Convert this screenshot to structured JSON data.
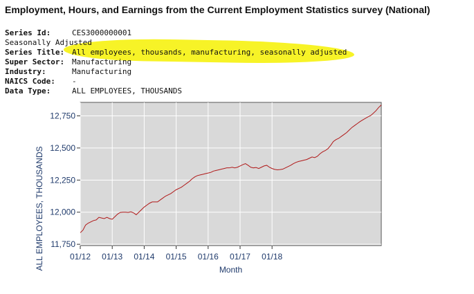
{
  "title": "Employment, Hours, and Earnings from the Current Employment Statistics survey (National)",
  "meta": [
    {
      "label": "Series Id:",
      "value": "CES3000000001"
    },
    {
      "label": "",
      "value": "Seasonally Adjusted"
    },
    {
      "label": "Series Title:",
      "value": "All employees, thousands, manufacturing, seasonally adjusted"
    },
    {
      "label": "Super Sector:",
      "value": "Manufacturing"
    },
    {
      "label": "Industry:",
      "value": "Manufacturing"
    },
    {
      "label": "NAICS Code:",
      "value": "-"
    },
    {
      "label": "Data Type:",
      "value": "ALL EMPLOYEES, THOUSANDS"
    }
  ],
  "colors": {
    "line": "#b01818",
    "plot_bg": "#d9d9d9",
    "axis_text": "#1f3a6b",
    "highlight": "#f7f21b"
  },
  "chart_data": {
    "type": "line",
    "title": "",
    "xlabel": "Month",
    "ylabel": "ALL EMPLOYEES, THOUSANDS",
    "grid": true,
    "xticks": [
      "01/12",
      "01/13",
      "01/14",
      "01/15",
      "01/16",
      "01/17",
      "01/18"
    ],
    "yticks": [
      11750,
      12000,
      12250,
      12500,
      12750
    ],
    "ytick_labels": [
      "11,750",
      "12,000",
      "12,250",
      "12,500",
      "12,750"
    ],
    "ylim": [
      11740,
      12855
    ],
    "xlim": [
      "2012-01",
      "2018-12"
    ],
    "series": [
      {
        "values": [
          11840,
          11860,
          11900,
          11915,
          11925,
          11935,
          11940,
          11960,
          11955,
          11950,
          11960,
          11950,
          11945,
          11965,
          11985,
          11998,
          12000,
          12000,
          11998,
          12003,
          11995,
          11980,
          12000,
          12020,
          12040,
          12055,
          12070,
          12080,
          12080,
          12080,
          12095,
          12110,
          12125,
          12135,
          12145,
          12160,
          12175,
          12185,
          12195,
          12210,
          12225,
          12240,
          12260,
          12275,
          12285,
          12290,
          12295,
          12300,
          12305,
          12310,
          12320,
          12325,
          12330,
          12335,
          12340,
          12345,
          12345,
          12350,
          12345,
          12350,
          12360,
          12370,
          12378,
          12365,
          12350,
          12345,
          12348,
          12340,
          12350,
          12360,
          12365,
          12350,
          12340,
          12333,
          12330,
          12332,
          12335,
          12345,
          12355,
          12365,
          12378,
          12388,
          12395,
          12400,
          12405,
          12410,
          12420,
          12430,
          12425,
          12435,
          12455,
          12470,
          12480,
          12495,
          12520,
          12550,
          12565,
          12575,
          12590,
          12605,
          12620,
          12640,
          12660,
          12675,
          12690,
          12705,
          12718,
          12730,
          12742,
          12752,
          12770,
          12790,
          12815,
          12835
        ]
      }
    ]
  }
}
